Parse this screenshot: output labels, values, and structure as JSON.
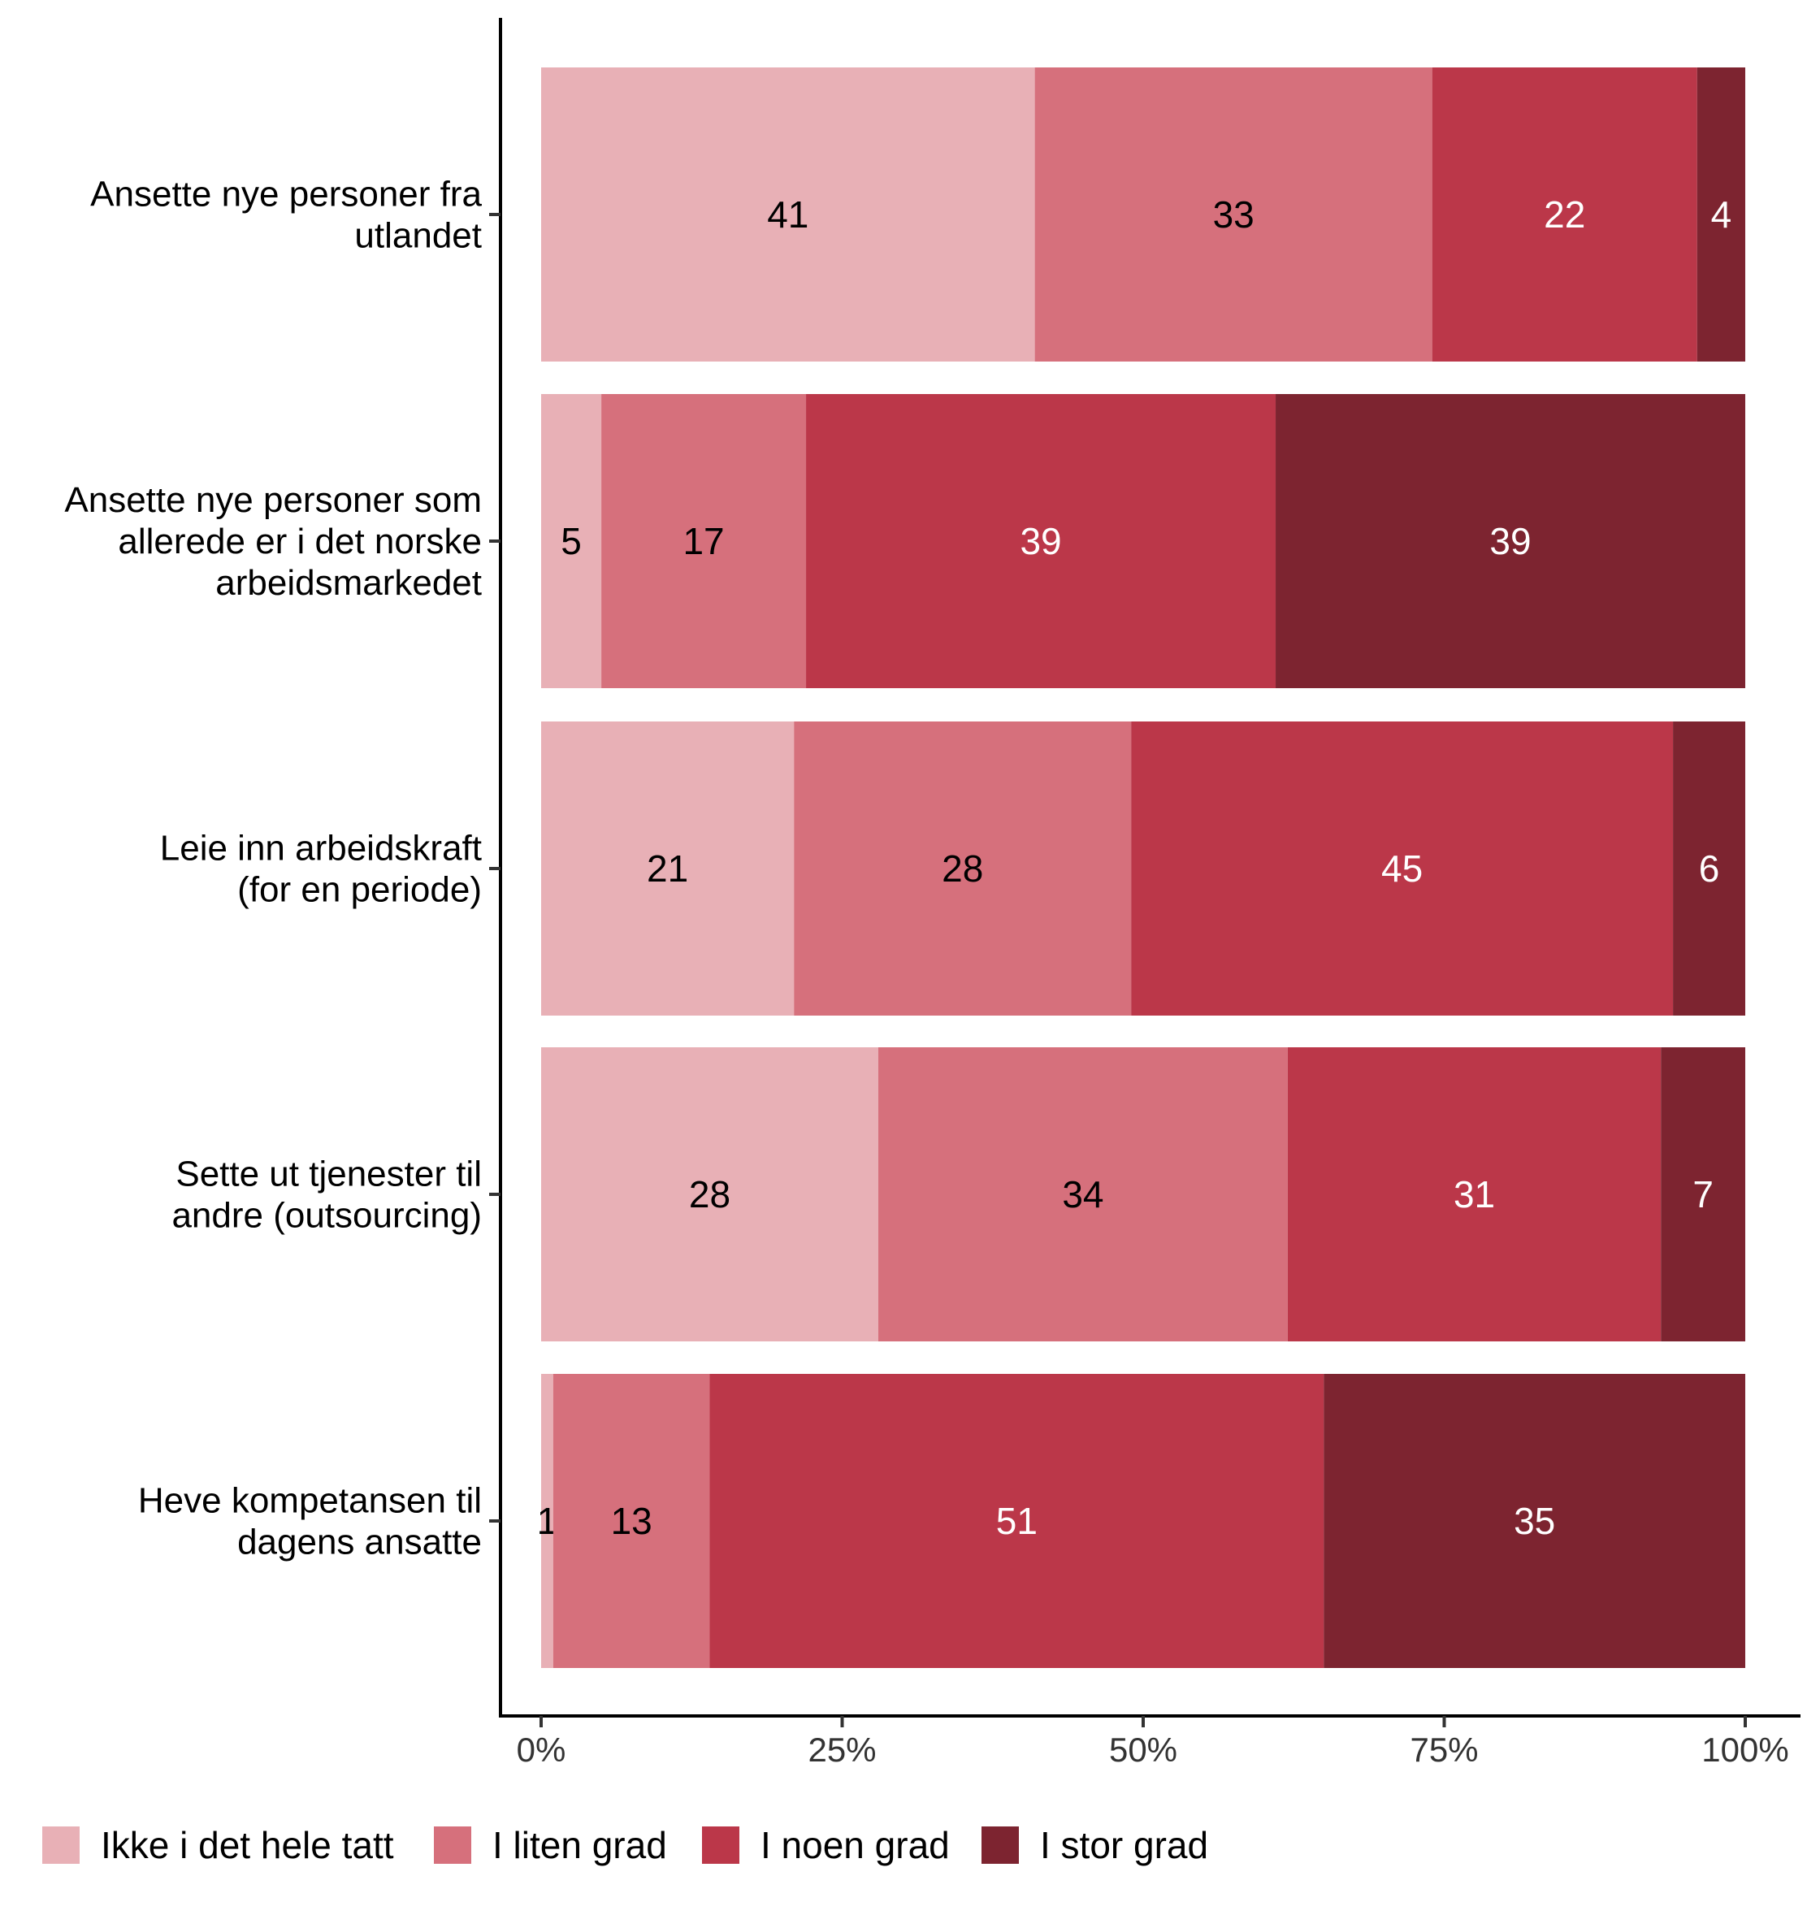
{
  "chart_data": {
    "type": "bar",
    "orientation": "horizontal",
    "stacked": true,
    "normalized": true,
    "title": "",
    "xlabel": "",
    "ylabel": "",
    "xlim": [
      0,
      100
    ],
    "xticks": [
      "0%",
      "25%",
      "50%",
      "75%",
      "100%"
    ],
    "xtick_values": [
      0,
      25,
      50,
      75,
      100
    ],
    "legend_position": "bottom",
    "grid": false,
    "categories": [
      [
        "Ansette nye personer fra",
        "utlandet"
      ],
      [
        "Ansette nye personer som",
        "allerede er i det norske",
        "arbeidsmarkedet"
      ],
      [
        "Leie inn arbeidskraft",
        "(for en periode)"
      ],
      [
        "Sette ut tjenester til",
        "andre (outsourcing)"
      ],
      [
        "Heve kompetansen til",
        "dagens ansatte"
      ]
    ],
    "series": [
      {
        "name": "Ikke i det hele tatt",
        "color": "#e8b0b6",
        "label_color": "#000000",
        "values": [
          41,
          5,
          21,
          28,
          1
        ],
        "value_labels": [
          "41",
          "5",
          "21",
          "28",
          "1"
        ]
      },
      {
        "name": "I liten grad",
        "color": "#d6707c",
        "label_color": "#000000",
        "values": [
          33,
          17,
          28,
          34,
          13
        ],
        "value_labels": [
          "33",
          "17",
          "28",
          "34",
          "13"
        ]
      },
      {
        "name": "I noen grad",
        "color": "#bb3749",
        "label_color": "#ffffff",
        "values": [
          22,
          39,
          45,
          31,
          51
        ],
        "value_labels": [
          "22",
          "39",
          "45",
          "31",
          "51"
        ]
      },
      {
        "name": "I stor grad",
        "color": "#7d2430",
        "label_color": "#ffffff",
        "values": [
          4,
          39,
          6,
          7,
          35
        ],
        "value_labels": [
          "4",
          "39",
          "6",
          "7",
          "35"
        ]
      }
    ]
  }
}
